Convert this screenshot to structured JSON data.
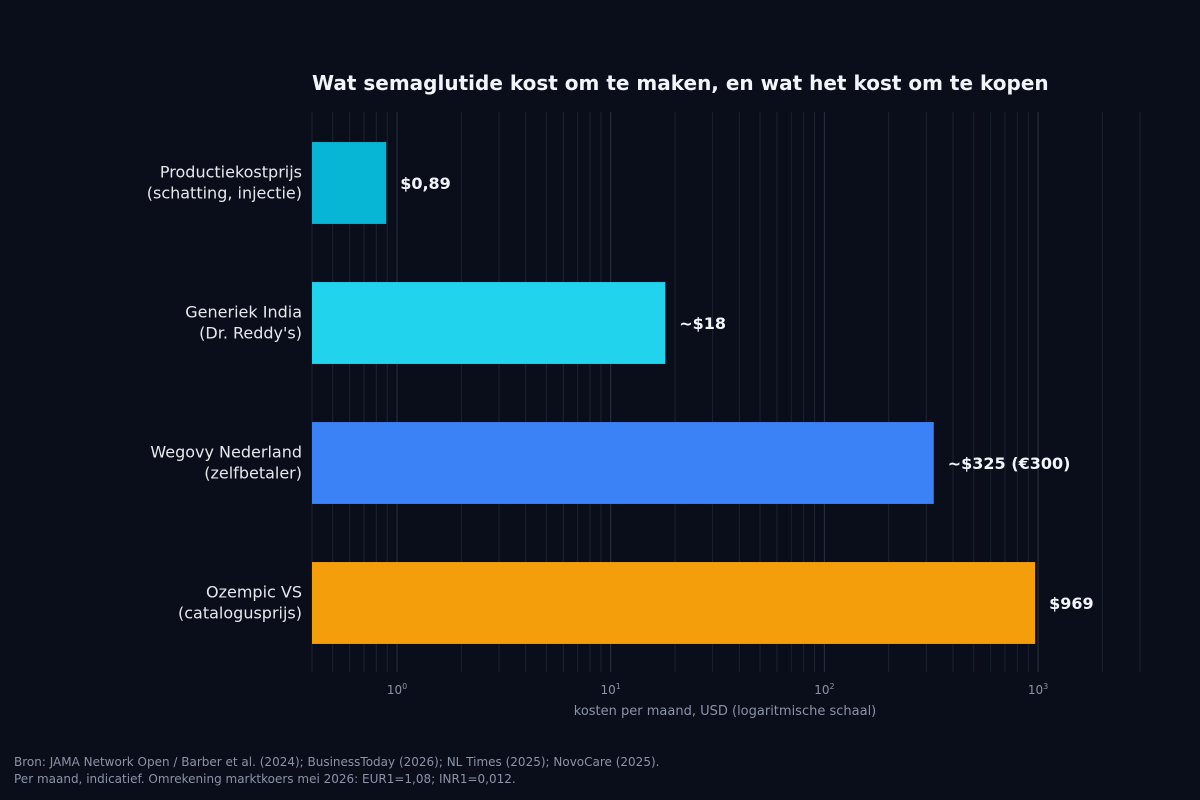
{
  "chart_data": {
    "type": "bar",
    "orientation": "horizontal",
    "title": "Wat semaglutide kost om te maken, en wat het kost om te kopen",
    "xlabel": "kosten per maand, USD (logaritmische schaal)",
    "ylabel": "",
    "x_scale": "log",
    "xlim": [
      0.4,
      3000
    ],
    "grid": true,
    "categories": [
      [
        "Productiekostprijs",
        "(schatting, injectie)"
      ],
      [
        "Generiek India",
        "(Dr. Reddy's)"
      ],
      [
        "Wegovy Nederland",
        "(zelfbetaler)"
      ],
      [
        "Ozempic VS",
        "(catalogusprijs)"
      ]
    ],
    "values": [
      0.89,
      18,
      325,
      969
    ],
    "value_labels": [
      "$0,89",
      "~$18",
      "~$325 (€300)",
      "$969"
    ],
    "colors": [
      "#06b6d4",
      "#22d3ee",
      "#3b82f6",
      "#f59e0b"
    ],
    "x_ticks": [
      {
        "value": 1,
        "base": "10",
        "exp": "0"
      },
      {
        "value": 10,
        "base": "10",
        "exp": "1"
      },
      {
        "value": 100,
        "base": "10",
        "exp": "2"
      },
      {
        "value": 1000,
        "base": "10",
        "exp": "3"
      }
    ]
  },
  "footnote": {
    "line1": "Bron: JAMA Network Open / Barber et al. (2024); BusinessToday (2026); NL Times (2025); NovoCare (2025).",
    "line2": "Per maand, indicatief. Omrekening marktkoers mei 2026: EUR1=1,08; INR1=0,012."
  }
}
